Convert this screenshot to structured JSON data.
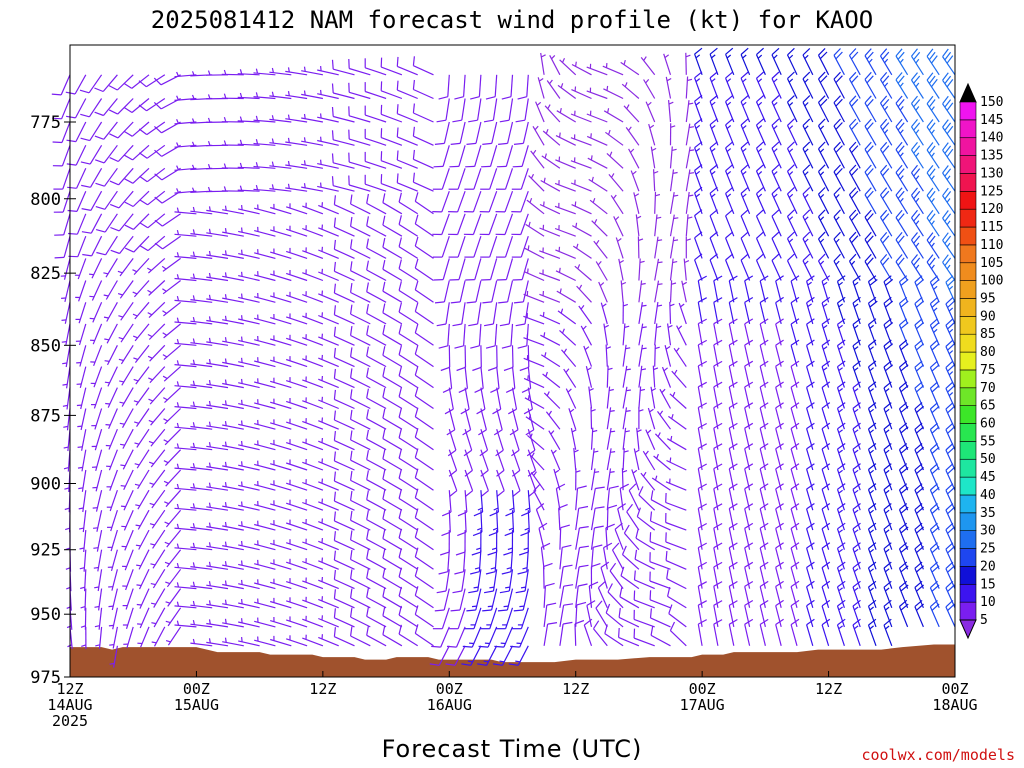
{
  "chart_data": {
    "type": "wind_profile",
    "title": "2025081412 NAM forecast wind profile (kt) for KAOO",
    "xlabel": "Forecast Time (UTC)",
    "ylabel": "",
    "credit": "coolwx.com/models",
    "x_hours": [
      0,
      84
    ],
    "xlim_hours": [
      0,
      84
    ],
    "ylim_hpa": [
      975,
      753
    ],
    "y_scale": "log",
    "y_ticks": [
      {
        "value": 775,
        "label": "775"
      },
      {
        "value": 800,
        "label": "800"
      },
      {
        "value": 825,
        "label": "825"
      },
      {
        "value": 850,
        "label": "850"
      },
      {
        "value": 875,
        "label": "875"
      },
      {
        "value": 900,
        "label": "900"
      },
      {
        "value": 925,
        "label": "925"
      },
      {
        "value": 950,
        "label": "950"
      },
      {
        "value": 975,
        "label": "975"
      }
    ],
    "x_ticks": [
      {
        "hour": 0,
        "lines": [
          "12Z",
          "14AUG",
          "2025"
        ]
      },
      {
        "hour": 12,
        "lines": [
          "00Z",
          "15AUG"
        ]
      },
      {
        "hour": 24,
        "lines": [
          "12Z"
        ]
      },
      {
        "hour": 36,
        "lines": [
          "00Z",
          "16AUG"
        ]
      },
      {
        "hour": 48,
        "lines": [
          "12Z"
        ]
      },
      {
        "hour": 60,
        "lines": [
          "00Z",
          "17AUG"
        ]
      },
      {
        "hour": 72,
        "lines": [
          "12Z"
        ]
      },
      {
        "hour": 84,
        "lines": [
          "00Z",
          "18AUG"
        ]
      }
    ],
    "colorbar": {
      "labels": [
        "5",
        "10",
        "15",
        "20",
        "25",
        "30",
        "35",
        "40",
        "45",
        "50",
        "55",
        "60",
        "65",
        "70",
        "75",
        "80",
        "85",
        "90",
        "95",
        "100",
        "105",
        "110",
        "115",
        "120",
        "125",
        "130",
        "135",
        "140",
        "145",
        "150"
      ],
      "colors": [
        "#8a2be2",
        "#7a1ef0",
        "#3c14f0",
        "#1010d8",
        "#1e46f0",
        "#1e6ef0",
        "#1e96f0",
        "#1eb4f0",
        "#1ee6c8",
        "#1ee6a0",
        "#1ee678",
        "#28e650",
        "#3ce628",
        "#6ee628",
        "#a0f01e",
        "#e6f01e",
        "#f0dc1e",
        "#f0c81e",
        "#f0b41e",
        "#f0a01e",
        "#f08c1e",
        "#f0781e",
        "#f05014",
        "#f02814",
        "#f01414",
        "#f01450",
        "#f01478",
        "#f014a0",
        "#f014c8",
        "#f014f0"
      ]
    },
    "surface_pressure_hpa": [
      [
        0,
        963
      ],
      [
        3,
        963
      ],
      [
        4,
        964
      ],
      [
        5,
        963
      ],
      [
        12,
        963
      ],
      [
        13,
        964
      ],
      [
        14,
        965
      ],
      [
        18,
        965
      ],
      [
        19,
        966
      ],
      [
        23,
        966
      ],
      [
        24,
        967
      ],
      [
        27,
        967
      ],
      [
        28,
        968
      ],
      [
        30,
        968
      ],
      [
        31,
        967
      ],
      [
        34,
        967
      ],
      [
        35,
        968
      ],
      [
        38,
        968
      ],
      [
        40,
        968
      ],
      [
        41,
        969
      ],
      [
        46,
        969
      ],
      [
        48,
        968
      ],
      [
        52,
        968
      ],
      [
        55,
        967
      ],
      [
        57,
        967
      ],
      [
        59,
        967
      ],
      [
        60,
        966
      ],
      [
        62,
        966
      ],
      [
        63,
        965
      ],
      [
        69,
        965
      ],
      [
        71,
        964
      ],
      [
        77,
        964
      ],
      [
        79,
        963
      ],
      [
        82,
        962
      ],
      [
        84,
        962
      ]
    ],
    "wind_summary": [
      {
        "period": "14AUG 12Z - 15AUG 00Z",
        "direction": "southerly to southwesterly",
        "speed_kt": "5-10"
      },
      {
        "period": "15AUG 00Z - 16AUG 00Z",
        "direction": "westerly to northwesterly",
        "speed_kt": "5-10"
      },
      {
        "period": "16AUG 00Z - 16AUG 06Z",
        "direction": "southerly",
        "speed_kt": "5-15"
      },
      {
        "period": "16AUG 06Z - 17AUG 00Z",
        "direction": "northwesterly to northeasterly",
        "speed_kt": "5-10"
      },
      {
        "period": "17AUG 00Z - 18AUG 00Z",
        "direction": "northerly to northwesterly",
        "speed_kt": "5-30"
      }
    ]
  }
}
